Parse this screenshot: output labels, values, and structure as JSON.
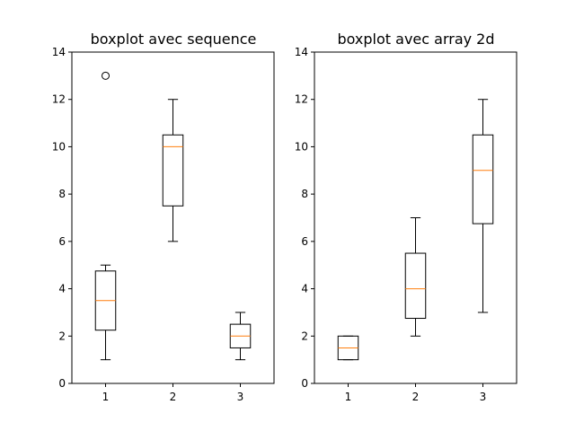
{
  "chart_data": [
    {
      "type": "boxplot",
      "title": "boxplot avec sequence",
      "categories": [
        "1",
        "2",
        "3"
      ],
      "ylim": [
        0,
        14
      ],
      "yticks": [
        0,
        2,
        4,
        6,
        8,
        10,
        12,
        14
      ],
      "boxes": [
        {
          "category": "1",
          "whisker_low": 1,
          "q1": 2.25,
          "median": 3.5,
          "q3": 4.75,
          "whisker_high": 5,
          "outliers": [
            13
          ]
        },
        {
          "category": "2",
          "whisker_low": 6,
          "q1": 7.5,
          "median": 10,
          "q3": 10.5,
          "whisker_high": 12,
          "outliers": []
        },
        {
          "category": "3",
          "whisker_low": 1,
          "q1": 1.5,
          "median": 2,
          "q3": 2.5,
          "whisker_high": 3,
          "outliers": []
        }
      ]
    },
    {
      "type": "boxplot",
      "title": "boxplot avec array 2d",
      "categories": [
        "1",
        "2",
        "3"
      ],
      "ylim": [
        0,
        14
      ],
      "yticks": [
        0,
        2,
        4,
        6,
        8,
        10,
        12,
        14
      ],
      "boxes": [
        {
          "category": "1",
          "whisker_low": 1,
          "q1": 1,
          "median": 1.5,
          "q3": 2,
          "whisker_high": 2,
          "outliers": []
        },
        {
          "category": "2",
          "whisker_low": 2,
          "q1": 2.75,
          "median": 4,
          "q3": 5.5,
          "whisker_high": 7,
          "outliers": []
        },
        {
          "category": "3",
          "whisker_low": 3,
          "q1": 6.75,
          "median": 9,
          "q3": 10.5,
          "whisker_high": 12,
          "outliers": []
        }
      ]
    }
  ],
  "colors": {
    "median": "#ff7f0e",
    "box": "#000000"
  }
}
